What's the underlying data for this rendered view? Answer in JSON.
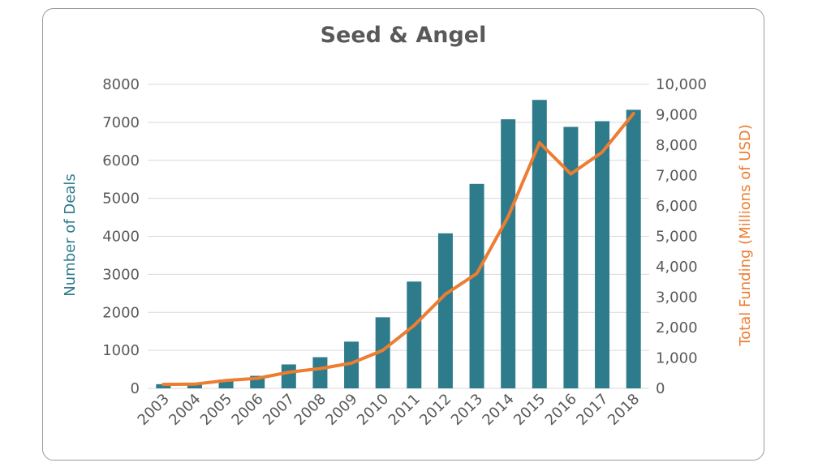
{
  "colors": {
    "bar": "#2e7b8c",
    "line": "#ed7d31",
    "left_axis_label": "#2e7b8c",
    "right_axis_label": "#ed7d31",
    "grid": "#d9d9d9",
    "text": "#595959"
  },
  "chart_data": {
    "type": "bar",
    "title": "Seed & Angel",
    "categories": [
      "2003",
      "2004",
      "2005",
      "2006",
      "2007",
      "2008",
      "2009",
      "2010",
      "2011",
      "2012",
      "2013",
      "2014",
      "2015",
      "2016",
      "2017",
      "2018"
    ],
    "series": [
      {
        "name": "Number of Deals",
        "type": "bar",
        "axis": "left",
        "values": [
          110,
          140,
          230,
          330,
          630,
          820,
          1230,
          1870,
          2810,
          4080,
          5380,
          7080,
          7590,
          6880,
          7030,
          7330
        ]
      },
      {
        "name": "Total Funding (Millions of USD)",
        "type": "line",
        "axis": "right",
        "values": [
          130,
          140,
          260,
          330,
          530,
          650,
          830,
          1250,
          2070,
          3100,
          3780,
          5650,
          8080,
          7050,
          7770,
          9040
        ]
      }
    ],
    "ylabel": "Number of Deals",
    "ylabel_right": "Total Funding (Millions of USD)",
    "ylim": [
      0,
      8000
    ],
    "ylim_right": [
      0,
      10000
    ],
    "yticks": [
      "0",
      "1000",
      "2000",
      "3000",
      "4000",
      "5000",
      "6000",
      "7000",
      "8000"
    ],
    "yticks_right": [
      "0",
      "1,000",
      "2,000",
      "3,000",
      "4,000",
      "5,000",
      "6,000",
      "7,000",
      "8,000",
      "9,000",
      "10,000"
    ],
    "grid": true,
    "legend": "none"
  }
}
